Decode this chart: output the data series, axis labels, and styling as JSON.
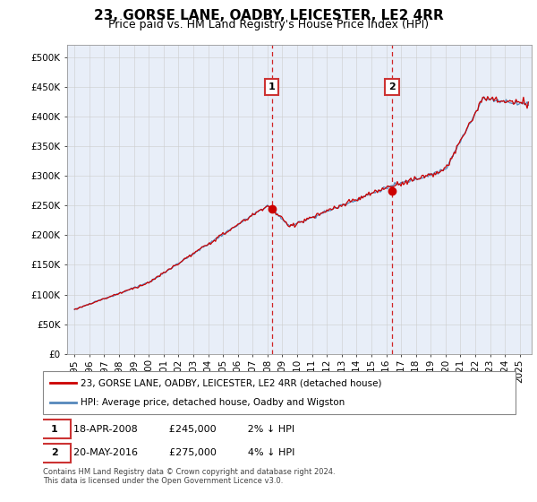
{
  "title": "23, GORSE LANE, OADBY, LEICESTER, LE2 4RR",
  "subtitle": "Price paid vs. HM Land Registry's House Price Index (HPI)",
  "ylabel_ticks": [
    "£0",
    "£50K",
    "£100K",
    "£150K",
    "£200K",
    "£250K",
    "£300K",
    "£350K",
    "£400K",
    "£450K",
    "£500K"
  ],
  "ytick_values": [
    0,
    50000,
    100000,
    150000,
    200000,
    250000,
    300000,
    350000,
    400000,
    450000,
    500000
  ],
  "ylim": [
    0,
    520000
  ],
  "xlim_start": 1994.5,
  "xlim_end": 2025.8,
  "sale1": {
    "date_num": 2008.29,
    "price": 245000,
    "label": "1",
    "date_str": "18-APR-2008",
    "pct": "2%"
  },
  "sale2": {
    "date_num": 2016.38,
    "price": 275000,
    "label": "2",
    "date_str": "20-MAY-2016",
    "pct": "4%"
  },
  "legend_line1": "23, GORSE LANE, OADBY, LEICESTER, LE2 4RR (detached house)",
  "legend_line2": "HPI: Average price, detached house, Oadby and Wigston",
  "footer": "Contains HM Land Registry data © Crown copyright and database right 2024.\nThis data is licensed under the Open Government Licence v3.0.",
  "line_color_red": "#cc0000",
  "line_color_blue": "#5588bb",
  "fill_color": "#ddeeff",
  "grid_color": "#cccccc",
  "vline_color": "#cc0000",
  "box_color": "#cc3333",
  "plot_bg": "#e8eef8",
  "title_fontsize": 11,
  "subtitle_fontsize": 9
}
